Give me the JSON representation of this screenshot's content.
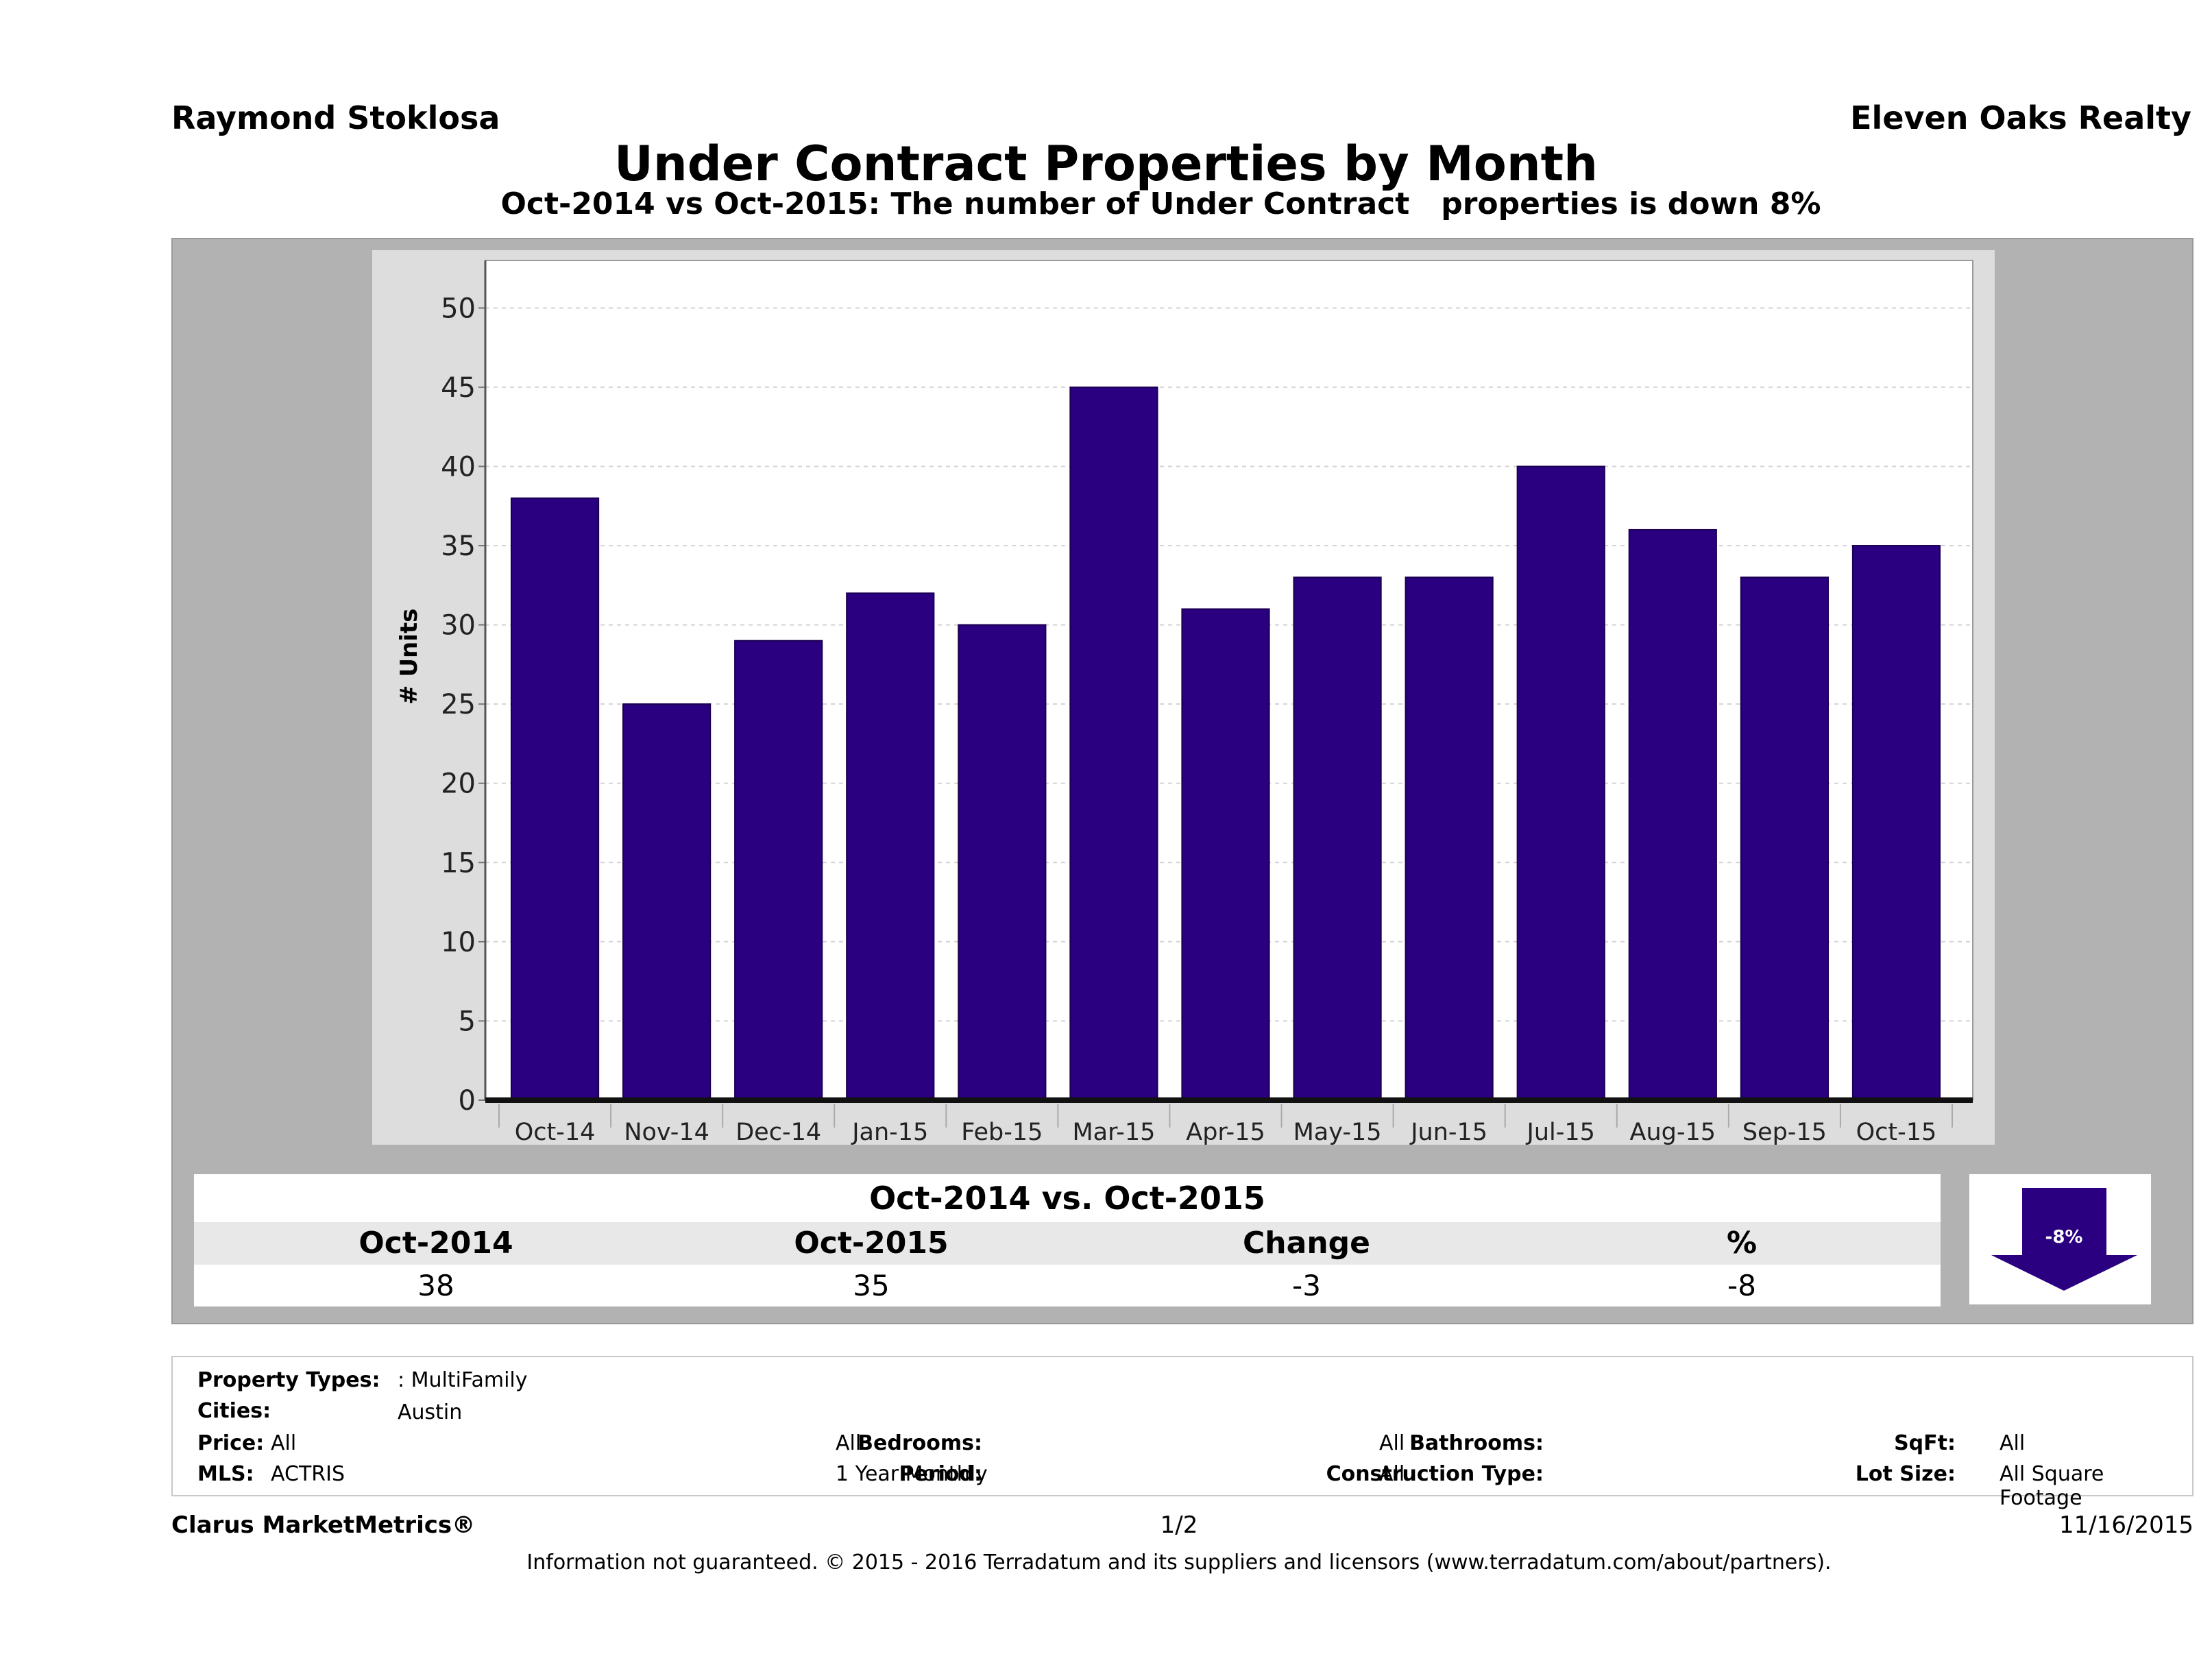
{
  "header": {
    "agent": "Raymond Stoklosa",
    "brokerage": "Eleven Oaks Realty",
    "title": "Under Contract Properties by Month",
    "subtitle": "Oct-2014 vs Oct-2015: The number of Under Contract   properties is down 8%"
  },
  "colors": {
    "bar": "#2a0080",
    "panel": "#b2b2b2",
    "chart_bg": "#dddddd"
  },
  "chart_data": {
    "type": "bar",
    "categories": [
      "Oct-14",
      "Nov-14",
      "Dec-14",
      "Jan-15",
      "Feb-15",
      "Mar-15",
      "Apr-15",
      "May-15",
      "Jun-15",
      "Jul-15",
      "Aug-15",
      "Sep-15",
      "Oct-15"
    ],
    "values": [
      38,
      25,
      29,
      32,
      30,
      45,
      31,
      33,
      33,
      40,
      36,
      33,
      35
    ],
    "xlabel": "",
    "ylabel": "# Units",
    "ylim": [
      0,
      53
    ],
    "yticks": [
      0,
      5,
      10,
      15,
      20,
      25,
      30,
      35,
      40,
      45,
      50
    ],
    "grid": true,
    "legend": "none"
  },
  "summary": {
    "title": "Oct-2014 vs. Oct-2015",
    "headers": [
      "Oct-2014",
      "Oct-2015",
      "Change",
      "%"
    ],
    "values": [
      "38",
      "35",
      "-3",
      "-8"
    ],
    "badge": "-8%",
    "badge_icon": "down-arrow-icon"
  },
  "criteria": {
    "property_types_label": "Property Types:",
    "property_types_value": ": MultiFamily",
    "cities_label": "Cities:",
    "cities_value": "Austin",
    "price_label": "Price:",
    "price_value": "All",
    "mls_label": "MLS:",
    "mls_value": "ACTRIS",
    "bedrooms_label": "Bedrooms:",
    "bedrooms_value": "All",
    "period_label": "Period:",
    "period_value": "1 Year Monthly",
    "bathrooms_label": "Bathrooms:",
    "bathrooms_value": "All",
    "construction_label": "Construction Type:",
    "construction_value": "All",
    "sqft_label": "SqFt:",
    "sqft_value": "All",
    "lot_label": "Lot Size:",
    "lot_value": "All Square Footage"
  },
  "footer": {
    "brand": "Clarus MarketMetrics®",
    "page": "1/2",
    "date": "11/16/2015",
    "disclaimer": "Information not guaranteed. © 2015 - 2016 Terradatum and its suppliers and licensors (www.terradatum.com/about/partners)."
  }
}
